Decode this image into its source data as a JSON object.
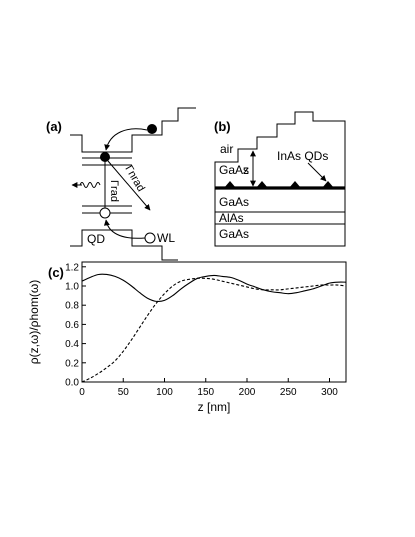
{
  "panel_a": {
    "label": "(a)",
    "gamma_nrad": "Γnrad",
    "gamma_rad": "Γrad",
    "qd": "QD",
    "wl": "WL"
  },
  "panel_b": {
    "label": "(b)",
    "air": "air",
    "z": "z",
    "gaas_top": "GaAs",
    "inas_qds": "InAs QDs",
    "layers": [
      "GaAs",
      "AlAs",
      "GaAs"
    ]
  },
  "panel_c": {
    "label": "(c)",
    "ylabel": "ρ(z,ω)/ρhom(ω)",
    "xlabel": "z [nm]"
  },
  "chart_data": {
    "type": "line",
    "title": "",
    "xlabel": "z [nm]",
    "ylabel": "ρ(z,ω)/ρhom(ω)",
    "xlim": [
      0,
      320
    ],
    "ylim": [
      0.0,
      1.25
    ],
    "xticks": [
      "0",
      "50",
      "100",
      "150",
      "200",
      "250",
      "300"
    ],
    "yticks": [
      "0.0",
      "0.2",
      "0.4",
      "0.6",
      "0.8",
      "1.0",
      "1.2"
    ],
    "series": [
      {
        "style": "solid",
        "x": [
          0,
          10,
          20,
          30,
          40,
          50,
          60,
          70,
          80,
          90,
          100,
          110,
          120,
          130,
          140,
          150,
          160,
          170,
          180,
          190,
          200,
          210,
          220,
          230,
          240,
          250,
          260,
          270,
          280,
          290,
          300,
          310,
          320
        ],
        "y": [
          1.05,
          1.09,
          1.12,
          1.12,
          1.1,
          1.06,
          1.0,
          0.93,
          0.87,
          0.84,
          0.85,
          0.9,
          0.97,
          1.03,
          1.08,
          1.1,
          1.11,
          1.1,
          1.09,
          1.06,
          1.02,
          0.99,
          0.96,
          0.94,
          0.93,
          0.92,
          0.93,
          0.95,
          0.97,
          1.0,
          1.03,
          1.04,
          1.04
        ]
      },
      {
        "style": "dashed",
        "x": [
          0,
          10,
          20,
          30,
          40,
          50,
          60,
          70,
          80,
          90,
          100,
          110,
          120,
          130,
          140,
          150,
          160,
          170,
          180,
          190,
          200,
          210,
          220,
          230,
          240,
          250,
          260,
          270,
          280,
          290,
          300,
          310,
          320
        ],
        "y": [
          0.0,
          0.04,
          0.09,
          0.15,
          0.22,
          0.32,
          0.44,
          0.57,
          0.7,
          0.82,
          0.92,
          1.0,
          1.05,
          1.07,
          1.08,
          1.08,
          1.07,
          1.05,
          1.03,
          1.01,
          0.99,
          0.97,
          0.96,
          0.96,
          0.96,
          0.97,
          0.98,
          0.99,
          1.0,
          1.01,
          1.01,
          1.01,
          1.0
        ]
      }
    ]
  }
}
